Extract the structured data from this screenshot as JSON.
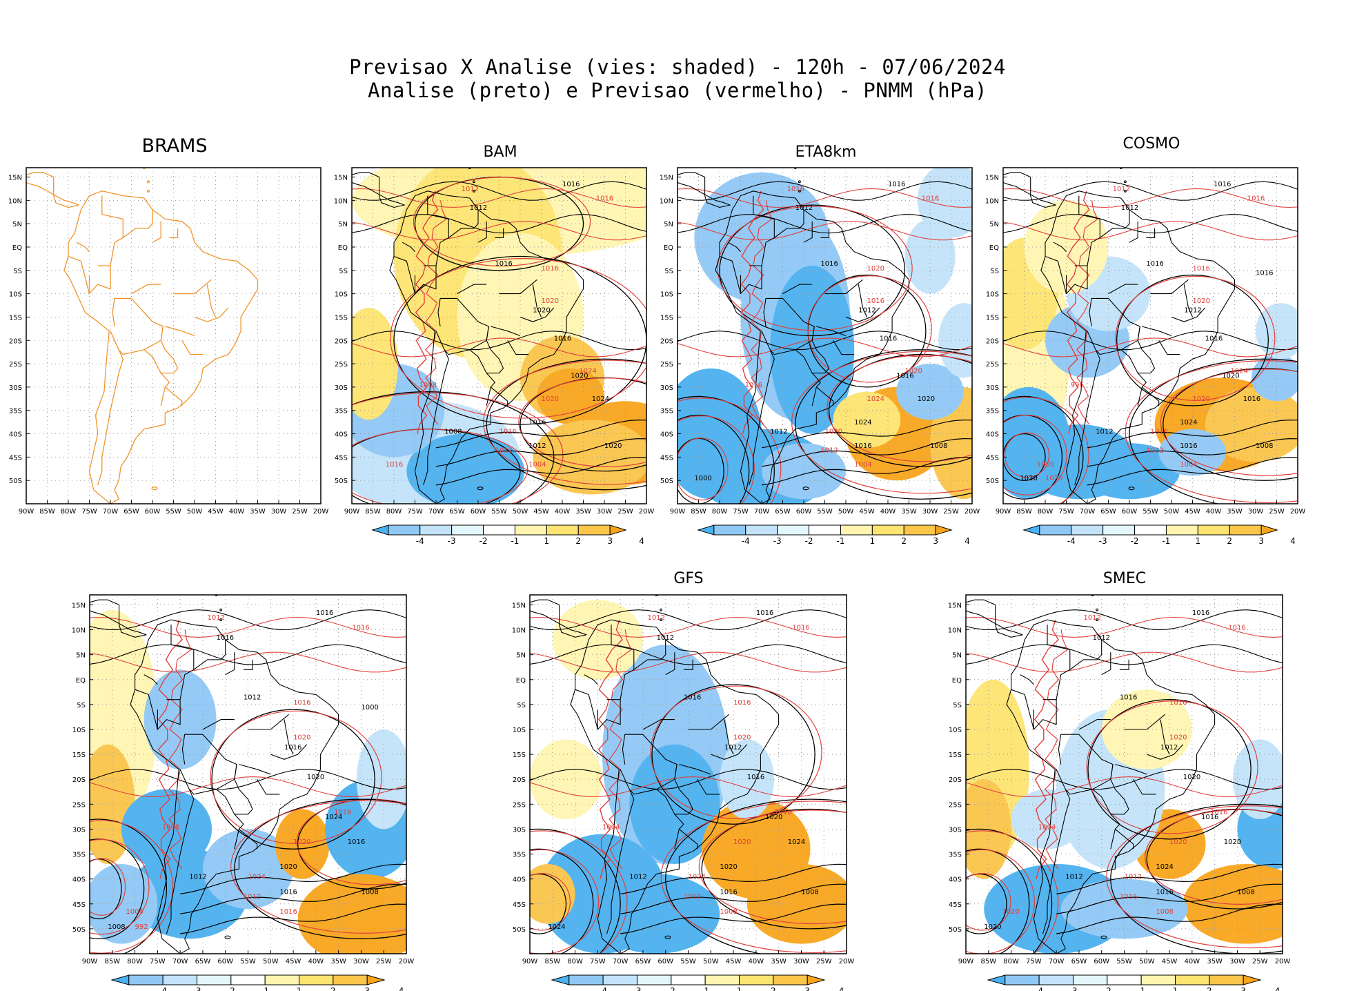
{
  "title": {
    "line1": "Previsao X Analise (vies: shaded) - 120h - 07/06/2024",
    "line2": "Analise (preto) e Previsao (vermelho) - PNMM (hPa)"
  },
  "lat_labels": [
    "15N",
    "10N",
    "5N",
    "EQ",
    "5S",
    "10S",
    "15S",
    "20S",
    "25S",
    "30S",
    "35S",
    "40S",
    "45S",
    "50S"
  ],
  "lon_labels": [
    "90W",
    "85W",
    "80W",
    "75W",
    "70W",
    "65W",
    "60W",
    "55W",
    "50W",
    "45W",
    "40W",
    "35W",
    "30W",
    "25W",
    "20W"
  ],
  "colorbar": {
    "ticks": [
      "-4",
      "-3",
      "-2",
      "-1",
      "1",
      "2",
      "3",
      "4"
    ],
    "colors": [
      "#4bb1f0",
      "#8fc8f5",
      "#c2e3fa",
      "#e3f6fb",
      "#ffffff",
      "#fff5b0",
      "#fde470",
      "#fbc54a",
      "#f8a51c"
    ]
  },
  "colors": {
    "analysis": "#000000",
    "forecast": "#e0403c",
    "coast_brams": "#f0942a",
    "grid": "#9a9a9a"
  },
  "panels": [
    {
      "title": "BRAMS",
      "shaded": false,
      "colorbar": false,
      "labels_black": [],
      "labels_red": []
    },
    {
      "title": "BAM",
      "shaded": true,
      "colorbar": true,
      "labels_black": [
        "1016",
        "1012",
        "1016",
        "1020",
        "1016",
        "1020",
        "1024",
        "1016",
        "1012",
        "1008",
        "1020"
      ],
      "labels_red": [
        "1016",
        "1012",
        "1016",
        "1020",
        "1024",
        "1020",
        "1016",
        "1012",
        "1004",
        "1008",
        "1016"
      ]
    },
    {
      "title": "ETA8km",
      "shaded": true,
      "colorbar": true,
      "labels_black": [
        "1016",
        "1012",
        "1016",
        "1012",
        "1016",
        "1016",
        "1020",
        "1024",
        "1016",
        "1012",
        "1008",
        "1000"
      ],
      "labels_red": [
        "1016",
        "1016",
        "1020",
        "1016",
        "1020",
        "1024",
        "1020",
        "1012",
        "1004",
        "1016"
      ]
    },
    {
      "title": "COSMO",
      "shaded": true,
      "colorbar": true,
      "labels_black": [
        "1016",
        "1012",
        "1016",
        "1012",
        "1016",
        "1020",
        "1016",
        "1024",
        "1016",
        "1012",
        "1008",
        "1020",
        "1016"
      ],
      "labels_red": [
        "1016",
        "1012",
        "1016",
        "1020",
        "1024",
        "1020",
        "1016",
        "1012",
        "1004",
        "996",
        "1000",
        "1020"
      ]
    },
    {
      "title": "",
      "shaded": true,
      "colorbar": true,
      "labels_black": [
        "1016",
        "1016",
        "1012",
        "1016",
        "1020",
        "1024",
        "1016",
        "1020",
        "1016",
        "1012",
        "1008",
        "1008",
        "1000"
      ],
      "labels_red": [
        "1016",
        "1012",
        "1016",
        "1020",
        "1016",
        "1020",
        "1024",
        "1012",
        "1016",
        "1008",
        "1004",
        "992"
      ]
    },
    {
      "title": "GFS",
      "shaded": true,
      "colorbar": true,
      "labels_black": [
        "1016",
        "1012",
        "1016",
        "1012",
        "1016",
        "1020",
        "1024",
        "1020",
        "1016",
        "1012",
        "1008",
        "1024"
      ],
      "labels_red": [
        "1016",
        "1012",
        "1016",
        "1020",
        "1016",
        "1020",
        "1024",
        "1012",
        "1008",
        "1004"
      ]
    },
    {
      "title": "SMEC",
      "shaded": true,
      "colorbar": true,
      "labels_black": [
        "1016",
        "1012",
        "1016",
        "1012",
        "1020",
        "1016",
        "1020",
        "1024",
        "1016",
        "1012",
        "1008",
        "1020"
      ],
      "labels_red": [
        "1016",
        "1012",
        "1016",
        "1020",
        "1016",
        "1020",
        "1012",
        "1016",
        "1008",
        "1004",
        "1020"
      ]
    }
  ]
}
